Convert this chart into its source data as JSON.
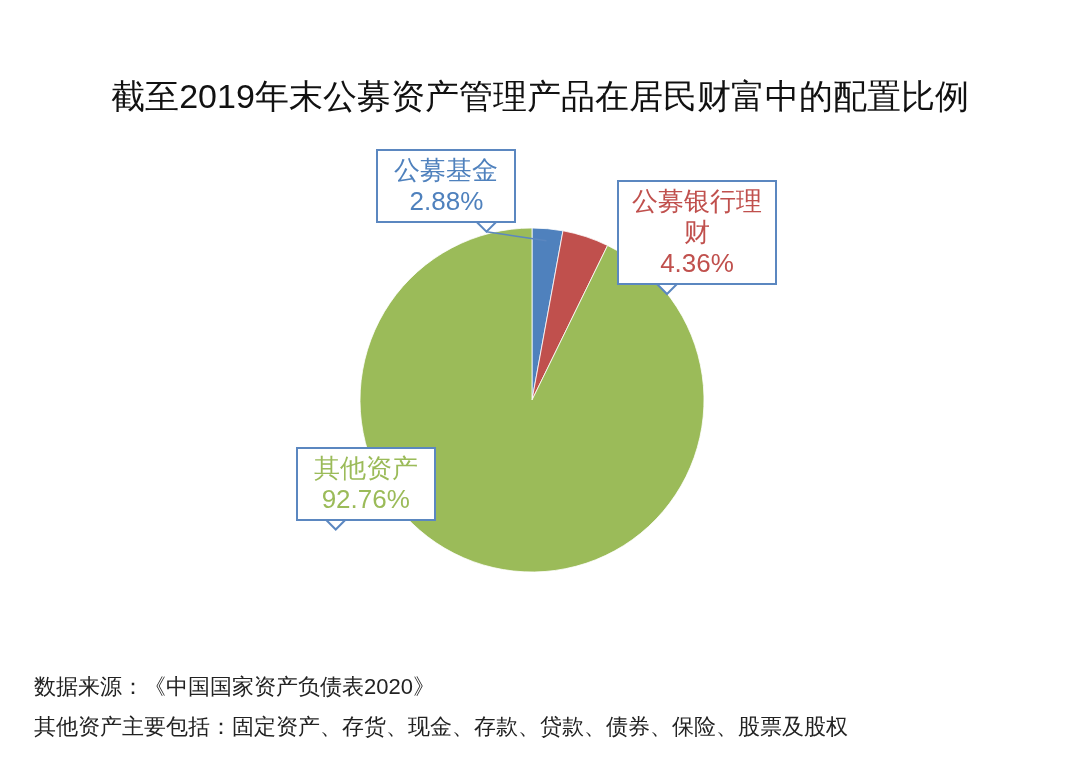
{
  "chart_data": {
    "type": "pie",
    "title": "截至2019年末公募资产管理产品在居民财富中的配置比例",
    "categories": [
      "公募基金",
      "公募银行理财",
      "其他资产"
    ],
    "values": [
      2.88,
      4.36,
      92.76
    ],
    "colors": [
      "#4f81bd",
      "#c0504d",
      "#9bbb59"
    ],
    "value_labels": [
      "2.88%",
      "4.36%",
      "92.76%"
    ],
    "annotations": [
      "数据来源：《中国国家资产负债表2020》",
      "其他资产主要包括：固定资产、存货、现金、存款、贷款、债券、保险、股票及股权"
    ]
  }
}
